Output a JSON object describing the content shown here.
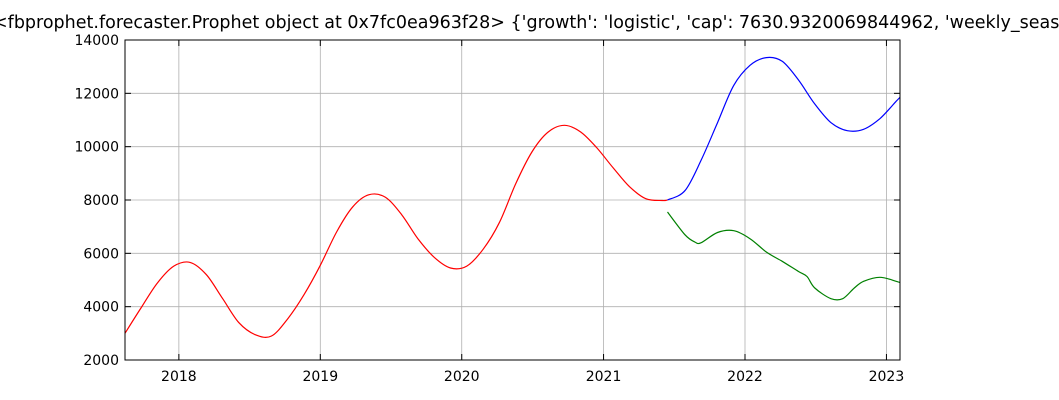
{
  "chart_data": {
    "type": "line",
    "title": "<fbprophet.forecaster.Prophet object at 0x7fc0ea963f28> {'growth': 'logistic', 'cap': 7630.9320069844962, 'weekly_seas",
    "xlabel": "",
    "ylabel": "",
    "xlim": [
      "2017-08-15",
      "2023-02-05"
    ],
    "ylim": [
      2000,
      14000
    ],
    "x_ticks": [
      "2018",
      "2019",
      "2020",
      "2021",
      "2022",
      "2023"
    ],
    "y_ticks": [
      2000,
      4000,
      6000,
      8000,
      10000,
      12000,
      14000
    ],
    "grid": true,
    "series": [
      {
        "color": "#ff0000",
        "x": [
          "2017-08-15",
          "2017-09-26",
          "2017-11-07",
          "2017-12-19",
          "2018-01-30",
          "2018-03-13",
          "2018-04-24",
          "2018-06-05",
          "2018-07-17",
          "2018-08-28",
          "2018-10-09",
          "2018-11-20",
          "2019-01-01",
          "2019-02-12",
          "2019-03-26",
          "2019-05-07",
          "2019-06-18",
          "2019-07-30",
          "2019-09-10",
          "2019-10-22",
          "2019-12-03",
          "2020-01-14",
          "2020-02-25",
          "2020-04-07",
          "2020-05-19",
          "2020-06-30",
          "2020-08-11",
          "2020-09-22",
          "2020-11-03",
          "2020-12-15",
          "2021-01-26",
          "2021-03-09",
          "2021-04-20",
          "2021-06-01",
          "2021-06-15"
        ],
        "values": [
          3000,
          3970,
          4900,
          5520,
          5660,
          5200,
          4300,
          3400,
          2950,
          2900,
          3550,
          4450,
          5550,
          6800,
          7750,
          8200,
          8100,
          7450,
          6550,
          5850,
          5450,
          5520,
          6150,
          7150,
          8600,
          9800,
          10550,
          10800,
          10550,
          9950,
          9200,
          8500,
          8050,
          7980,
          8000
        ]
      },
      {
        "color": "#0000ff",
        "x": [
          "2021-06-15",
          "2021-07-30",
          "2021-09-10",
          "2021-10-22",
          "2021-12-03",
          "2022-01-14",
          "2022-02-25",
          "2022-04-07",
          "2022-05-19",
          "2022-06-30",
          "2022-08-11",
          "2022-09-22",
          "2022-11-03",
          "2022-12-15",
          "2023-01-26",
          "2023-02-05"
        ],
        "values": [
          8000,
          8350,
          9500,
          10900,
          12300,
          13050,
          13340,
          13200,
          12500,
          11600,
          10900,
          10600,
          10650,
          11050,
          11700,
          11850
        ]
      },
      {
        "color": "#008000",
        "x": [
          "2021-06-15",
          "2021-07-30",
          "2021-08-25",
          "2021-09-10",
          "2021-10-22",
          "2021-12-03",
          "2022-01-14",
          "2022-02-25",
          "2022-04-07",
          "2022-05-19",
          "2022-06-10",
          "2022-06-30",
          "2022-08-11",
          "2022-09-10",
          "2022-10-10",
          "2022-11-03",
          "2022-12-15",
          "2023-01-26",
          "2023-02-05"
        ],
        "values": [
          7550,
          6700,
          6420,
          6400,
          6780,
          6850,
          6550,
          6050,
          5700,
          5320,
          5130,
          4700,
          4300,
          4300,
          4700,
          4950,
          5100,
          4950,
          4900
        ]
      }
    ]
  }
}
